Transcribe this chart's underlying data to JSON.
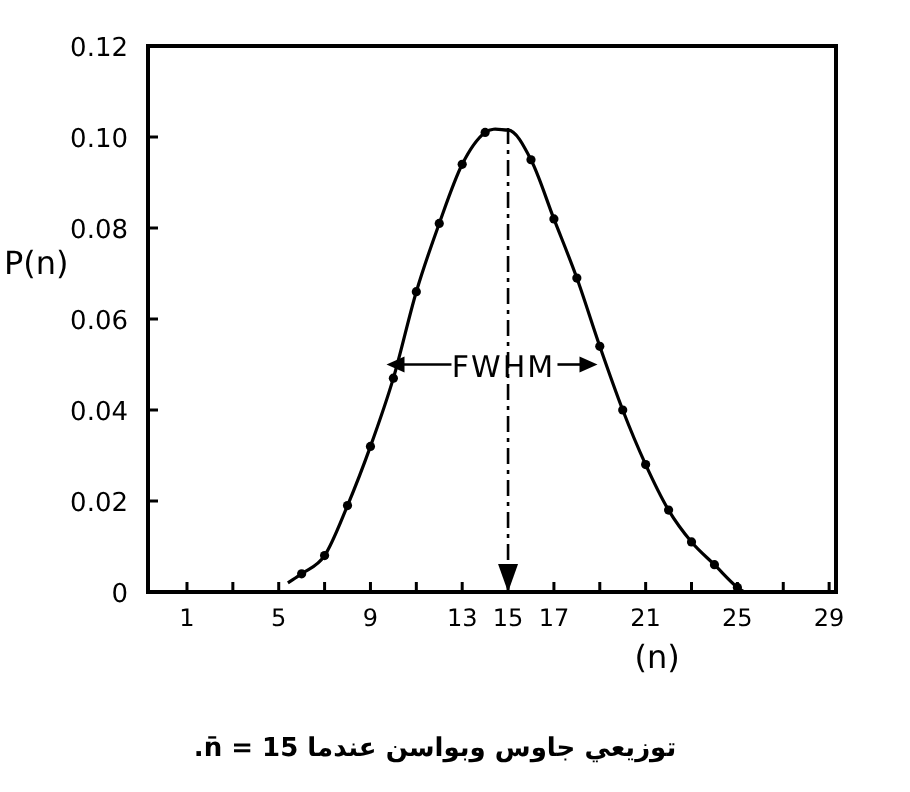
{
  "chart_data": {
    "type": "line",
    "xlabel": "(n)",
    "ylabel": "P(n)",
    "series": [
      {
        "type": "scatter",
        "color": "#000000",
        "marker": "circle",
        "x": [
          6,
          7,
          8,
          9,
          10,
          11,
          12,
          13,
          14,
          16,
          17,
          18,
          19,
          20,
          21,
          22,
          23,
          24,
          25
        ],
        "values": [
          0.004,
          0.008,
          0.019,
          0.032,
          0.047,
          0.066,
          0.081,
          0.094,
          0.101,
          0.095,
          0.082,
          0.069,
          0.054,
          0.04,
          0.028,
          0.018,
          0.011,
          0.006,
          0.001
        ]
      },
      {
        "type": "line",
        "color": "#000000",
        "line_style": "solid",
        "x": [
          5.4,
          6,
          7,
          8,
          9,
          10,
          11,
          12,
          13,
          14,
          15,
          16,
          17,
          18,
          19,
          20,
          21,
          22,
          23,
          24,
          25,
          25.3
        ],
        "values": [
          0.002,
          0.004,
          0.008,
          0.019,
          0.032,
          0.047,
          0.066,
          0.081,
          0.094,
          0.101,
          0.1015,
          0.095,
          0.082,
          0.069,
          0.054,
          0.04,
          0.028,
          0.018,
          0.011,
          0.006,
          0.001,
          0.0
        ]
      }
    ],
    "xlim": [
      -0.7,
      29.3
    ],
    "ylim": [
      0,
      0.12
    ],
    "xticks": [
      {
        "value": 1,
        "label": "1"
      },
      {
        "value": 3,
        "label": null
      },
      {
        "value": 5,
        "label": "5"
      },
      {
        "value": 7,
        "label": null
      },
      {
        "value": 9,
        "label": "9"
      },
      {
        "value": 11,
        "label": null
      },
      {
        "value": 13,
        "label": "13"
      },
      {
        "value": 15,
        "label": "15"
      },
      {
        "value": 17,
        "label": "17"
      },
      {
        "value": 19,
        "label": null
      },
      {
        "value": 21,
        "label": "21"
      },
      {
        "value": 23,
        "label": null
      },
      {
        "value": 25,
        "label": "25"
      },
      {
        "value": 27,
        "label": null
      },
      {
        "value": 29,
        "label": "29"
      }
    ],
    "yticks": [
      {
        "value": 0,
        "label": "0"
      },
      {
        "value": 0.02,
        "label": "0.02"
      },
      {
        "value": 0.04,
        "label": "0.04"
      },
      {
        "value": 0.06,
        "label": "0.06"
      },
      {
        "value": 0.08,
        "label": "0.08"
      },
      {
        "value": 0.1,
        "label": "0.10"
      },
      {
        "value": 0.12,
        "label": "0.12"
      }
    ],
    "ref_lines": [
      {
        "axis": "x",
        "value": 15,
        "line_style": "dashdot",
        "color": "#000000"
      }
    ],
    "annotations": [
      {
        "text": "FWHM",
        "x": 14.8,
        "y": 0.05
      },
      "توزيعي جاوس وبواسن عندما n̄ = 15."
    ],
    "grid": false
  }
}
